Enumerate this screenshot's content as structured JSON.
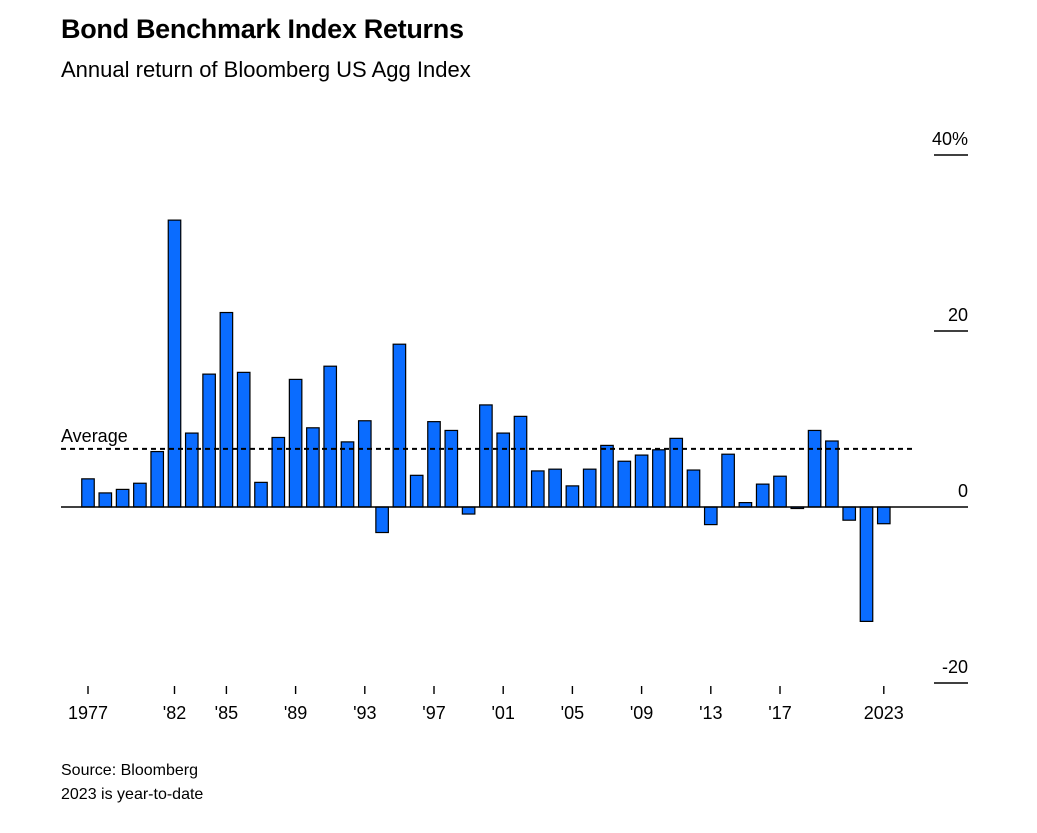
{
  "title": "Bond Benchmark Index Returns",
  "subtitle": "Annual return of Bloomberg US Agg Index",
  "footer": {
    "source": "Source: Bloomberg",
    "note": "2023 is year-to-date"
  },
  "colors": {
    "bar_fill": "#0A6CFF",
    "bar_stroke": "#000000",
    "axis": "#000000"
  },
  "chart_data": {
    "type": "bar",
    "title": "Bond Benchmark Index Returns",
    "subtitle": "Annual return of Bloomberg US Agg Index",
    "xlabel": "",
    "ylabel": "",
    "ylim": [
      -20,
      40
    ],
    "yticks": [
      40,
      20,
      0,
      -20
    ],
    "ytick_labels": [
      "40%",
      "20",
      "0",
      "-20"
    ],
    "y_axis_side": "right",
    "grid": false,
    "legend": "none",
    "average": {
      "label": "Average",
      "value": 6.6
    },
    "x_tick_labels": [
      {
        "year": 1977,
        "label": "1977"
      },
      {
        "year": 1982,
        "label": "'82"
      },
      {
        "year": 1985,
        "label": "'85"
      },
      {
        "year": 1989,
        "label": "'89"
      },
      {
        "year": 1993,
        "label": "'93"
      },
      {
        "year": 1997,
        "label": "'97"
      },
      {
        "year": 2001,
        "label": "'01"
      },
      {
        "year": 2005,
        "label": "'05"
      },
      {
        "year": 2009,
        "label": "'09"
      },
      {
        "year": 2013,
        "label": "'13"
      },
      {
        "year": 2017,
        "label": "'17"
      },
      {
        "year": 2023,
        "label": "2023"
      }
    ],
    "categories": [
      1977,
      1978,
      1979,
      1980,
      1981,
      1982,
      1983,
      1984,
      1985,
      1986,
      1987,
      1988,
      1989,
      1990,
      1991,
      1992,
      1993,
      1994,
      1995,
      1996,
      1997,
      1998,
      1999,
      2000,
      2001,
      2002,
      2003,
      2004,
      2005,
      2006,
      2007,
      2008,
      2009,
      2010,
      2011,
      2012,
      2013,
      2014,
      2015,
      2016,
      2017,
      2018,
      2019,
      2020,
      2021,
      2022,
      2023
    ],
    "values": [
      3.2,
      1.6,
      2.0,
      2.7,
      6.3,
      32.6,
      8.4,
      15.1,
      22.1,
      15.3,
      2.8,
      7.9,
      14.5,
      9.0,
      16.0,
      7.4,
      9.8,
      -2.9,
      18.5,
      3.6,
      9.7,
      8.7,
      -0.8,
      11.6,
      8.4,
      10.3,
      4.1,
      4.3,
      2.4,
      4.3,
      7.0,
      5.2,
      5.9,
      6.5,
      7.8,
      4.2,
      -2.0,
      6.0,
      0.5,
      2.6,
      3.5,
      0.0,
      8.7,
      7.5,
      -1.5,
      -13.0,
      -1.9
    ]
  }
}
